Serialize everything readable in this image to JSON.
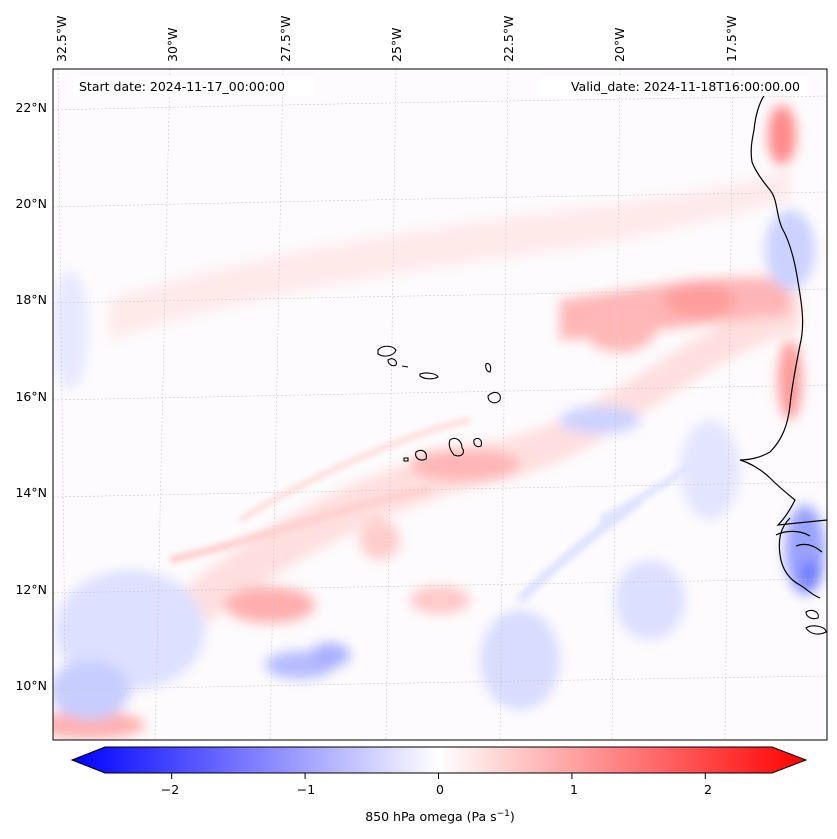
{
  "map": {
    "annotations": {
      "start_date": "Start date: 2024-11-17_00:00:00",
      "valid_date": "Valid_date: 2024-11-18T16:00:00.00"
    },
    "longitude_labels": [
      "32.5°W",
      "30°W",
      "27.5°W",
      "25°W",
      "22.5°W",
      "20°W",
      "17.5°W"
    ],
    "latitude_labels": [
      "22°N",
      "20°N",
      "18°N",
      "16°N",
      "14°N",
      "12°N",
      "10°N"
    ],
    "field": "850 hPa omega",
    "gridlines": true,
    "land_fill": false
  },
  "colorbar": {
    "label": "850 hPa omega (Pa s",
    "label_sup": "−1",
    "label_end": ")",
    "tick_labels": [
      "−2",
      "−1",
      "0",
      "1",
      "2"
    ],
    "ticks": [
      -2,
      -1,
      0,
      1,
      2
    ],
    "range": [
      -2.5,
      2.5
    ],
    "extend": "both",
    "colormap": "bwr",
    "colors": {
      "negative": "#0000ff",
      "zero": "#ffffff",
      "positive": "#ff0000"
    }
  }
}
